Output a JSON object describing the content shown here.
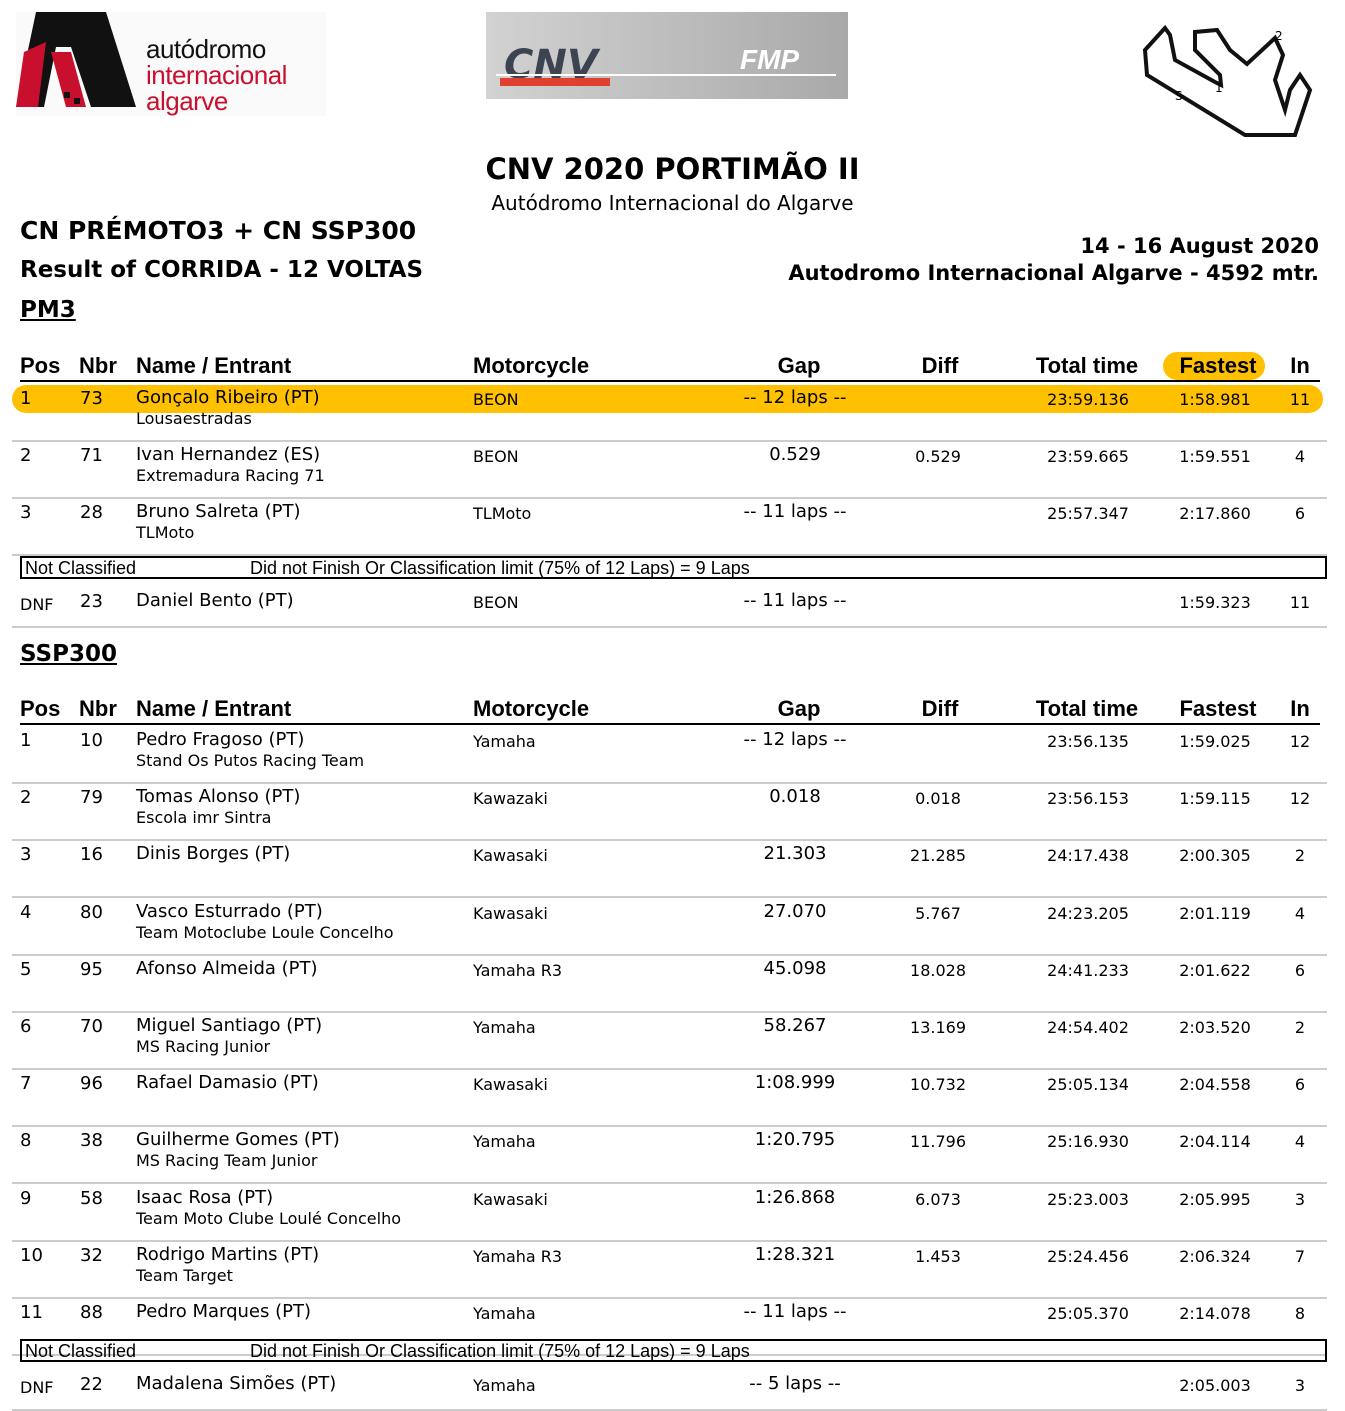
{
  "logos": {
    "aia": [
      "autódromo",
      "internacional",
      "algarve"
    ],
    "cnv": "CNV",
    "fmp": "FMP",
    "track_labels": [
      "1",
      "2",
      "S"
    ]
  },
  "event": {
    "title": "CNV 2020 PORTIMÃO II",
    "venue": "Autódromo Internacional do Algarve",
    "class": "CN PRÉMOTO3 + CN SSP300",
    "result": "Result of CORRIDA - 12 VOLTAS",
    "dates": "14 - 16 August 2020",
    "circuit": "Autodromo Internacional Algarve - 4592 mtr."
  },
  "columns": [
    "Pos",
    "Nbr",
    "Name / Entrant",
    "Motorcycle",
    "Gap",
    "Diff",
    "Total time",
    "Fastest",
    "In"
  ],
  "not_classified": {
    "label": "Not Classified",
    "text": "Did not Finish Or Classification limit (75% of 12 Laps) = 9 Laps"
  },
  "highlight_color": "#ffc000",
  "sections": [
    {
      "name": "PM3",
      "highlight_fastest": true,
      "rows": [
        {
          "pos": "1",
          "nbr": "73",
          "name": "Gonçalo Ribeiro (PT)",
          "entrant": "Lousaestradas",
          "moto": "BEON",
          "gap": "-- 12 laps --",
          "diff": "",
          "total": "23:59.136",
          "fastest": "1:58.981",
          "in": "11",
          "highlight": true
        },
        {
          "pos": "2",
          "nbr": "71",
          "name": "Ivan Hernandez (ES)",
          "entrant": "Extremadura Racing 71",
          "moto": "BEON",
          "gap": "0.529",
          "diff": "0.529",
          "total": "23:59.665",
          "fastest": "1:59.551",
          "in": "4"
        },
        {
          "pos": "3",
          "nbr": "28",
          "name": "Bruno Salreta (PT)",
          "entrant": "TLMoto",
          "moto": "TLMoto",
          "gap": "-- 11 laps --",
          "diff": "",
          "total": "25:57.347",
          "fastest": "2:17.860",
          "in": "6"
        }
      ],
      "dnf": [
        {
          "pos": "DNF",
          "nbr": "23",
          "name": "Daniel Bento (PT)",
          "entrant": "",
          "moto": "BEON",
          "gap": "-- 11 laps --",
          "diff": "",
          "total": "",
          "fastest": "1:59.323",
          "in": "11"
        }
      ]
    },
    {
      "name": "SSP300",
      "highlight_fastest": false,
      "rows": [
        {
          "pos": "1",
          "nbr": "10",
          "name": "Pedro Fragoso (PT)",
          "entrant": "Stand Os Putos Racing Team",
          "moto": "Yamaha",
          "gap": "-- 12 laps --",
          "diff": "",
          "total": "23:56.135",
          "fastest": "1:59.025",
          "in": "12"
        },
        {
          "pos": "2",
          "nbr": "79",
          "name": "Tomas Alonso (PT)",
          "entrant": "Escola imr Sintra",
          "moto": "Kawazaki",
          "gap": "0.018",
          "diff": "0.018",
          "total": "23:56.153",
          "fastest": "1:59.115",
          "in": "12"
        },
        {
          "pos": "3",
          "nbr": "16",
          "name": "Dinis Borges (PT)",
          "entrant": "",
          "moto": "Kawasaki",
          "gap": "21.303",
          "diff": "21.285",
          "total": "24:17.438",
          "fastest": "2:00.305",
          "in": "2"
        },
        {
          "pos": "4",
          "nbr": "80",
          "name": "Vasco Esturrado (PT)",
          "entrant": "Team Motoclube Loule Concelho",
          "moto": "Kawasaki",
          "gap": "27.070",
          "diff": "5.767",
          "total": "24:23.205",
          "fastest": "2:01.119",
          "in": "4"
        },
        {
          "pos": "5",
          "nbr": "95",
          "name": "Afonso Almeida (PT)",
          "entrant": "",
          "moto": "Yamaha R3",
          "gap": "45.098",
          "diff": "18.028",
          "total": "24:41.233",
          "fastest": "2:01.622",
          "in": "6"
        },
        {
          "pos": "6",
          "nbr": "70",
          "name": "Miguel Santiago (PT)",
          "entrant": "MS Racing Junior",
          "moto": "Yamaha",
          "gap": "58.267",
          "diff": "13.169",
          "total": "24:54.402",
          "fastest": "2:03.520",
          "in": "2"
        },
        {
          "pos": "7",
          "nbr": "96",
          "name": "Rafael Damasio (PT)",
          "entrant": "",
          "moto": "Kawasaki",
          "gap": "1:08.999",
          "diff": "10.732",
          "total": "25:05.134",
          "fastest": "2:04.558",
          "in": "6"
        },
        {
          "pos": "8",
          "nbr": "38",
          "name": "Guilherme Gomes (PT)",
          "entrant": "MS Racing Team Junior",
          "moto": "Yamaha",
          "gap": "1:20.795",
          "diff": "11.796",
          "total": "25:16.930",
          "fastest": "2:04.114",
          "in": "4"
        },
        {
          "pos": "9",
          "nbr": "58",
          "name": "Isaac Rosa (PT)",
          "entrant": "Team Moto Clube Loulé Concelho",
          "moto": "Kawasaki",
          "gap": "1:26.868",
          "diff": "6.073",
          "total": "25:23.003",
          "fastest": "2:05.995",
          "in": "3"
        },
        {
          "pos": "10",
          "nbr": "32",
          "name": "Rodrigo Martins (PT)",
          "entrant": "Team Target",
          "moto": "Yamaha R3",
          "gap": "1:28.321",
          "diff": "1.453",
          "total": "25:24.456",
          "fastest": "2:06.324",
          "in": "7"
        },
        {
          "pos": "11",
          "nbr": "88",
          "name": "Pedro Marques (PT)",
          "entrant": "",
          "moto": "Yamaha",
          "gap": "-- 11 laps --",
          "diff": "",
          "total": "25:05.370",
          "fastest": "2:14.078",
          "in": "8"
        }
      ],
      "dnf": [
        {
          "pos": "DNF",
          "nbr": "22",
          "name": "Madalena Simões (PT)",
          "entrant": "",
          "moto": "Yamaha",
          "gap": "-- 5 laps --",
          "diff": "",
          "total": "",
          "fastest": "2:05.003",
          "in": "3"
        }
      ]
    }
  ]
}
